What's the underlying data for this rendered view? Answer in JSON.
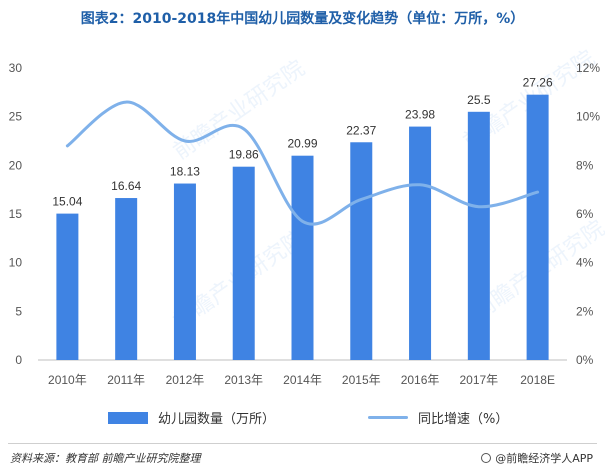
{
  "title": "图表2：2010-2018年中国幼儿园数量及变化趋势（单位：万所，%）",
  "source": "资料来源：教育部  前瞻产业研究院整理",
  "brand": "@前瞻经济学人APP",
  "colors": {
    "bar": "#3f83e3",
    "line": "#7fb1ea",
    "title": "#1f5fa8"
  },
  "chart_data": {
    "type": "bar",
    "categories": [
      "2010年",
      "2011年",
      "2012年",
      "2013年",
      "2014年",
      "2015年",
      "2016年",
      "2017年",
      "2018E"
    ],
    "series": [
      {
        "name": "幼儿园数量（万所）",
        "type": "bar",
        "axis": "left",
        "values": [
          15.04,
          16.64,
          18.13,
          19.86,
          20.99,
          22.37,
          23.98,
          25.5,
          27.26
        ]
      },
      {
        "name": "同比增速（%）",
        "type": "line",
        "axis": "right",
        "values": [
          8.8,
          10.6,
          9.0,
          9.5,
          5.7,
          6.6,
          7.2,
          6.3,
          6.9
        ]
      }
    ],
    "ylim_left": [
      0,
      30
    ],
    "yticks_left": [
      "0",
      "5",
      "10",
      "15",
      "20",
      "25",
      "30"
    ],
    "ylim_right": [
      0,
      12
    ],
    "yticks_right": [
      "0%",
      "2%",
      "4%",
      "6%",
      "8%",
      "10%",
      "12%"
    ],
    "data_labels": [
      "15.04",
      "16.64",
      "18.13",
      "19.86",
      "20.99",
      "22.37",
      "23.98",
      "25.5",
      "27.26"
    ],
    "grid": false,
    "legend": "bottom"
  }
}
